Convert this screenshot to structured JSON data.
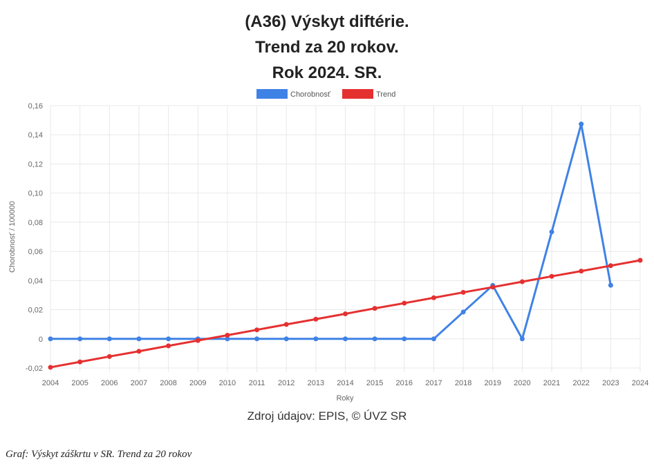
{
  "chart_data": {
    "type": "line",
    "title_lines": [
      "(A36) Výskyt diftérie.",
      "Trend za 20 rokov.",
      "Rok 2024. SR."
    ],
    "xlabel": "Roky",
    "ylabel": "Chorobnosť / 100000",
    "x": [
      2004,
      2005,
      2006,
      2007,
      2008,
      2009,
      2010,
      2011,
      2012,
      2013,
      2014,
      2015,
      2016,
      2017,
      2018,
      2019,
      2020,
      2021,
      2022,
      2023,
      2024
    ],
    "y_ticks": [
      "-0,02",
      "0",
      "0,02",
      "0,04",
      "0,06",
      "0,08",
      "0,10",
      "0,12",
      "0,14",
      "0,16"
    ],
    "ylim": [
      -0.02,
      0.16
    ],
    "grid": true,
    "legend_position": "top-center",
    "series": [
      {
        "name": "Chorobnosť",
        "color": "#3f82e6",
        "x": [
          2004,
          2005,
          2006,
          2007,
          2008,
          2009,
          2010,
          2011,
          2012,
          2013,
          2014,
          2015,
          2016,
          2017,
          2018,
          2019,
          2020,
          2021,
          2022,
          2023
        ],
        "values": [
          0,
          0,
          0,
          0,
          0,
          0,
          0,
          0,
          0,
          0,
          0,
          0,
          0,
          0,
          0.0184,
          0.0367,
          0,
          0.0734,
          0.1474,
          0.0368
        ]
      },
      {
        "name": "Trend",
        "color": "#e53030",
        "x": [
          2004,
          2005,
          2006,
          2007,
          2008,
          2009,
          2010,
          2011,
          2012,
          2013,
          2014,
          2015,
          2016,
          2017,
          2018,
          2019,
          2020,
          2021,
          2022,
          2023,
          2024
        ],
        "values": [
          -0.0195,
          -0.0158,
          -0.0121,
          -0.0085,
          -0.0048,
          -0.0011,
          0.0025,
          0.0062,
          0.0099,
          0.0135,
          0.0172,
          0.0209,
          0.0245,
          0.0282,
          0.0319,
          0.0355,
          0.0392,
          0.0429,
          0.0465,
          0.0502,
          0.0539
        ]
      }
    ]
  },
  "source_text": "Zdroj údajov: EPIS, © ÚVZ SR",
  "caption_text": "Graf: Výskyt záškrtu v SR. Trend za 20 rokov"
}
